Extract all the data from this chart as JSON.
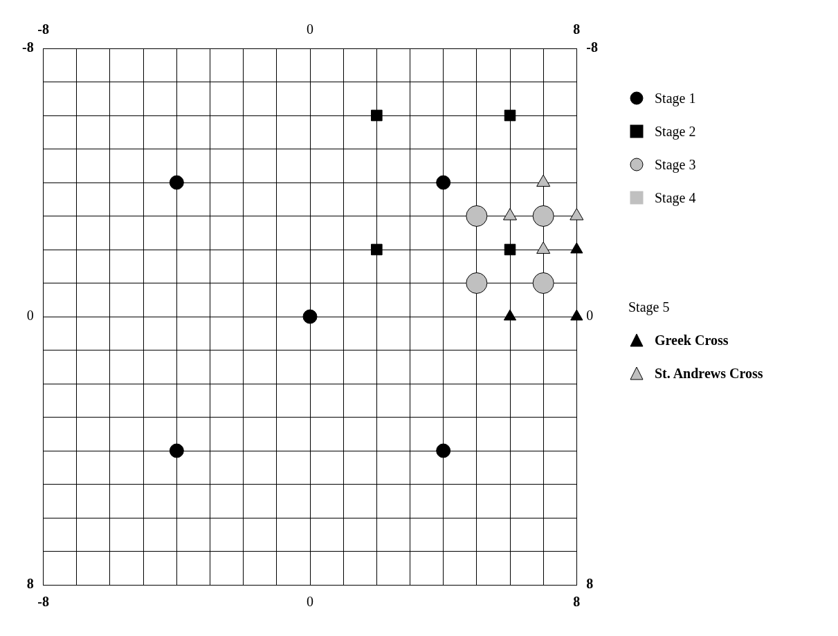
{
  "chart_data": {
    "type": "scatter",
    "xlim": [
      -8,
      8
    ],
    "ylim": [
      8,
      -8
    ],
    "x2lim": [
      -8,
      8
    ],
    "y2lim": [
      8,
      -8
    ],
    "xticks": [
      -8,
      {
        "value": -7,
        "label": null
      },
      {
        "value": -6,
        "label": null
      },
      {
        "value": -5,
        "label": null
      },
      {
        "value": -4,
        "label": null
      },
      {
        "value": -3,
        "label": null
      },
      {
        "value": -2,
        "label": null
      },
      {
        "value": -1,
        "label": null
      },
      0,
      {
        "value": 1,
        "label": null
      },
      {
        "value": 2,
        "label": null
      },
      {
        "value": 3,
        "label": null
      },
      {
        "value": 4,
        "label": null
      },
      {
        "value": 5,
        "label": null
      },
      {
        "value": 6,
        "label": null
      },
      {
        "value": 7,
        "label": null
      },
      8
    ],
    "x2ticks": [
      -8,
      0,
      8
    ],
    "yticks": [
      -8,
      {
        "value": -7,
        "label": null
      },
      {
        "value": -6,
        "label": null
      },
      {
        "value": -5,
        "label": null
      },
      {
        "value": -4,
        "label": null
      },
      {
        "value": -3,
        "label": null
      },
      {
        "value": -2,
        "label": null
      },
      {
        "value": -1,
        "label": null
      },
      0,
      {
        "value": 1,
        "label": null
      },
      {
        "value": 2,
        "label": null
      },
      {
        "value": 3,
        "label": null
      },
      {
        "value": 4,
        "label": null
      },
      {
        "value": 5,
        "label": null
      },
      {
        "value": 6,
        "label": null
      },
      {
        "value": 7,
        "label": null
      },
      8
    ],
    "y2ticks": [
      -8,
      0,
      8
    ],
    "grid": true,
    "legend": "right",
    "annotations": [
      "Stage 5"
    ],
    "series": [
      {
        "name": "Stage 1",
        "color": "#000000",
        "marker": "circle",
        "x": [
          -4,
          4,
          0,
          -4,
          4
        ],
        "values": [
          -4,
          -4,
          0,
          4,
          4
        ]
      },
      {
        "name": "Stage 2",
        "color": "#000000",
        "marker": "square",
        "x": [
          2,
          6,
          2,
          6
        ],
        "values": [
          -6,
          -6,
          -2,
          -2
        ]
      },
      {
        "name": "Stage 3",
        "color": "#c0c0c0",
        "marker": "circle",
        "x": [
          5,
          7,
          5,
          7
        ],
        "values": [
          -3,
          -3,
          -1,
          -1
        ]
      },
      {
        "name": "Stage 4",
        "color": "#c0c0c0",
        "marker": "square"
      },
      {
        "name": "Greek Cross",
        "color": "#000000",
        "marker": "triangle",
        "x": [
          8,
          6,
          8
        ],
        "values": [
          -2,
          0,
          0
        ]
      },
      {
        "name": "St. Andrews Cross",
        "color": "#c0c0c0",
        "marker": "triangle",
        "x": [
          7,
          6,
          8,
          7
        ],
        "values": [
          -4,
          -3,
          -3,
          -2
        ]
      }
    ]
  }
}
